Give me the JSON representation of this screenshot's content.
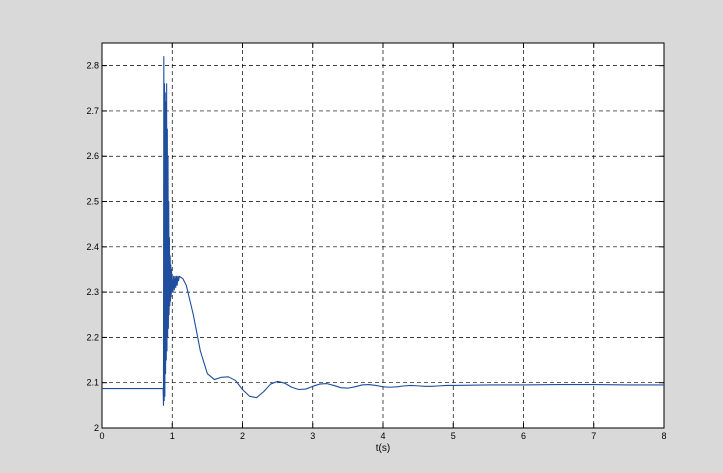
{
  "chart_data": {
    "type": "line",
    "title": "",
    "xlabel": "t(s)",
    "ylabel": "",
    "xlim": [
      0,
      8
    ],
    "ylim": [
      2.0,
      2.85
    ],
    "xticks": [
      0,
      1,
      2,
      3,
      4,
      5,
      6,
      7,
      8
    ],
    "yticks": [
      2,
      2.1,
      2.2,
      2.3,
      2.4,
      2.5,
      2.6,
      2.7,
      2.8
    ],
    "xtick_labels": [
      "0",
      "1",
      "2",
      "3",
      "4",
      "5",
      "6",
      "7",
      "8"
    ],
    "ytick_labels": [
      "2",
      "2.1",
      "2.2",
      "2.3",
      "2.4",
      "2.5",
      "2.6",
      "2.7",
      "2.8"
    ],
    "grid": true,
    "grid_style": "dashed",
    "colors": {
      "line": "#1f4e9c",
      "axes_bg": "#ffffff",
      "figure_bg": "#d9d9d9",
      "grid": "#000000"
    },
    "series": [
      {
        "x": [
          0.0,
          0.5,
          0.87,
          0.875,
          0.88,
          0.885,
          0.89,
          0.895,
          0.9,
          0.905,
          0.91,
          0.915,
          0.92,
          0.925,
          0.93,
          0.935,
          0.94,
          0.945,
          0.95,
          0.955,
          0.96,
          0.965,
          0.97,
          0.975,
          0.98,
          0.985,
          0.99,
          0.995,
          1.0,
          1.01,
          1.02,
          1.03,
          1.04,
          1.05,
          1.06,
          1.07,
          1.08,
          1.09,
          1.1,
          1.15,
          1.2,
          1.3,
          1.4,
          1.5,
          1.6,
          1.7,
          1.8,
          1.9,
          2.0,
          2.1,
          2.2,
          2.3,
          2.4,
          2.5,
          2.6,
          2.7,
          2.8,
          2.9,
          3.0,
          3.1,
          3.2,
          3.3,
          3.4,
          3.5,
          3.6,
          3.7,
          3.8,
          3.9,
          4.0,
          4.1,
          4.2,
          4.3,
          4.4,
          4.5,
          4.6,
          4.7,
          4.8,
          4.9,
          5.0,
          5.5,
          6.0,
          6.5,
          7.0,
          7.5,
          8.0
        ],
        "y": [
          2.087,
          2.087,
          2.087,
          2.05,
          2.82,
          2.06,
          2.76,
          2.07,
          2.74,
          2.12,
          2.72,
          2.15,
          2.76,
          2.17,
          2.66,
          2.2,
          2.6,
          2.22,
          2.5,
          2.25,
          2.42,
          2.27,
          2.38,
          2.28,
          2.36,
          2.29,
          2.35,
          2.3,
          2.33,
          2.3,
          2.335,
          2.305,
          2.335,
          2.31,
          2.335,
          2.315,
          2.335,
          2.325,
          2.335,
          2.33,
          2.315,
          2.25,
          2.17,
          2.12,
          2.107,
          2.112,
          2.113,
          2.105,
          2.085,
          2.07,
          2.067,
          2.08,
          2.097,
          2.103,
          2.099,
          2.09,
          2.085,
          2.086,
          2.092,
          2.097,
          2.098,
          2.094,
          2.089,
          2.088,
          2.091,
          2.095,
          2.096,
          2.094,
          2.091,
          2.09,
          2.091,
          2.093,
          2.094,
          2.093,
          2.092,
          2.092,
          2.093,
          2.094,
          2.094,
          2.095,
          2.095,
          2.096,
          2.096,
          2.095,
          2.095
        ]
      }
    ]
  }
}
